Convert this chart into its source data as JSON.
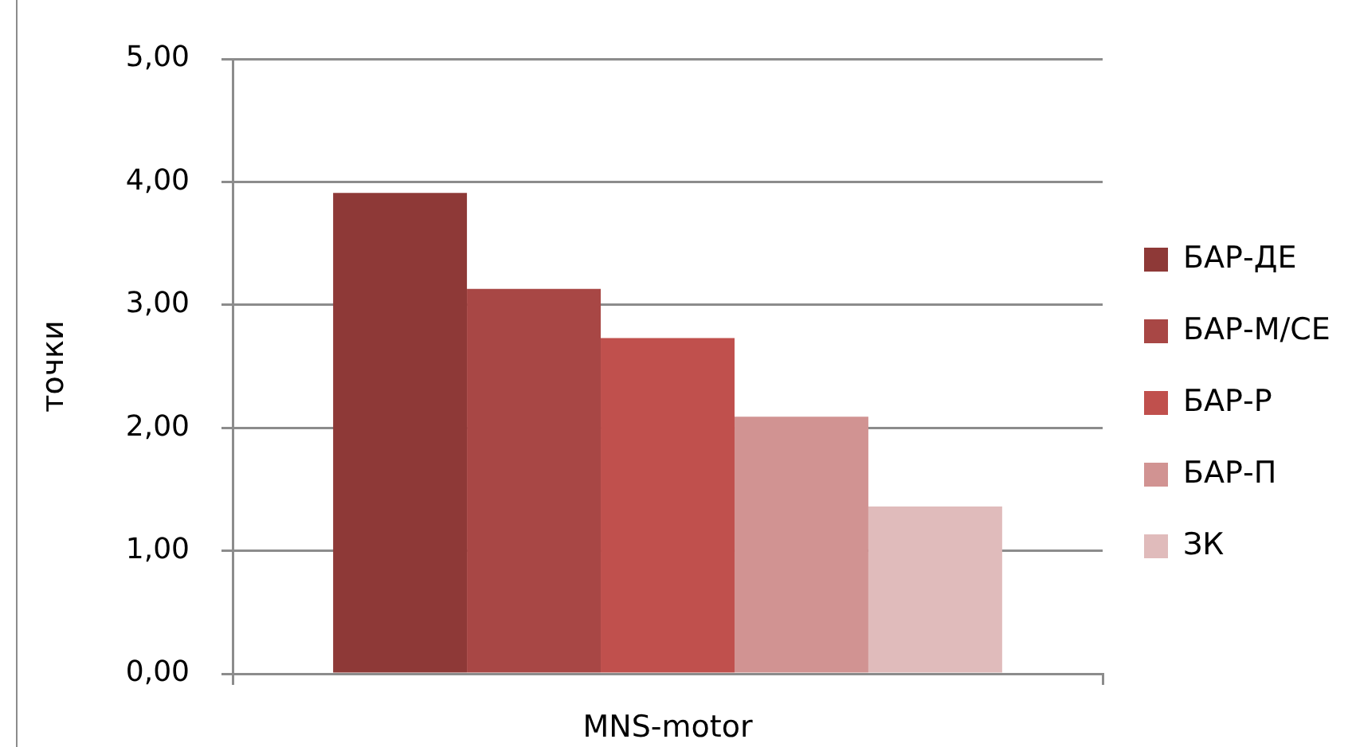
{
  "chart_data": {
    "type": "bar",
    "ylabel": "точки",
    "categories": [
      "MNS-motor"
    ],
    "series": [
      {
        "name": "БАР-ДЕ",
        "color": "#8e3937",
        "values": [
          3.91
        ]
      },
      {
        "name": "БАР-М/СЕ",
        "color": "#a84745",
        "values": [
          3.13
        ]
      },
      {
        "name": "БАР-Р",
        "color": "#c0504d",
        "values": [
          2.73
        ]
      },
      {
        "name": "БАР-П",
        "color": "#d19392",
        "values": [
          2.09
        ]
      },
      {
        "name": "ЗК",
        "color": "#e0bbbb",
        "values": [
          1.36
        ]
      }
    ],
    "ylim": [
      0,
      5
    ],
    "yticks": [
      {
        "value": 0,
        "label": "0,00"
      },
      {
        "value": 1,
        "label": "1,00"
      },
      {
        "value": 2,
        "label": "2,00"
      },
      {
        "value": 3,
        "label": "3,00"
      },
      {
        "value": 4,
        "label": "4,00"
      },
      {
        "value": 5,
        "label": "5,00"
      }
    ],
    "grid": "y",
    "legend": "right"
  }
}
